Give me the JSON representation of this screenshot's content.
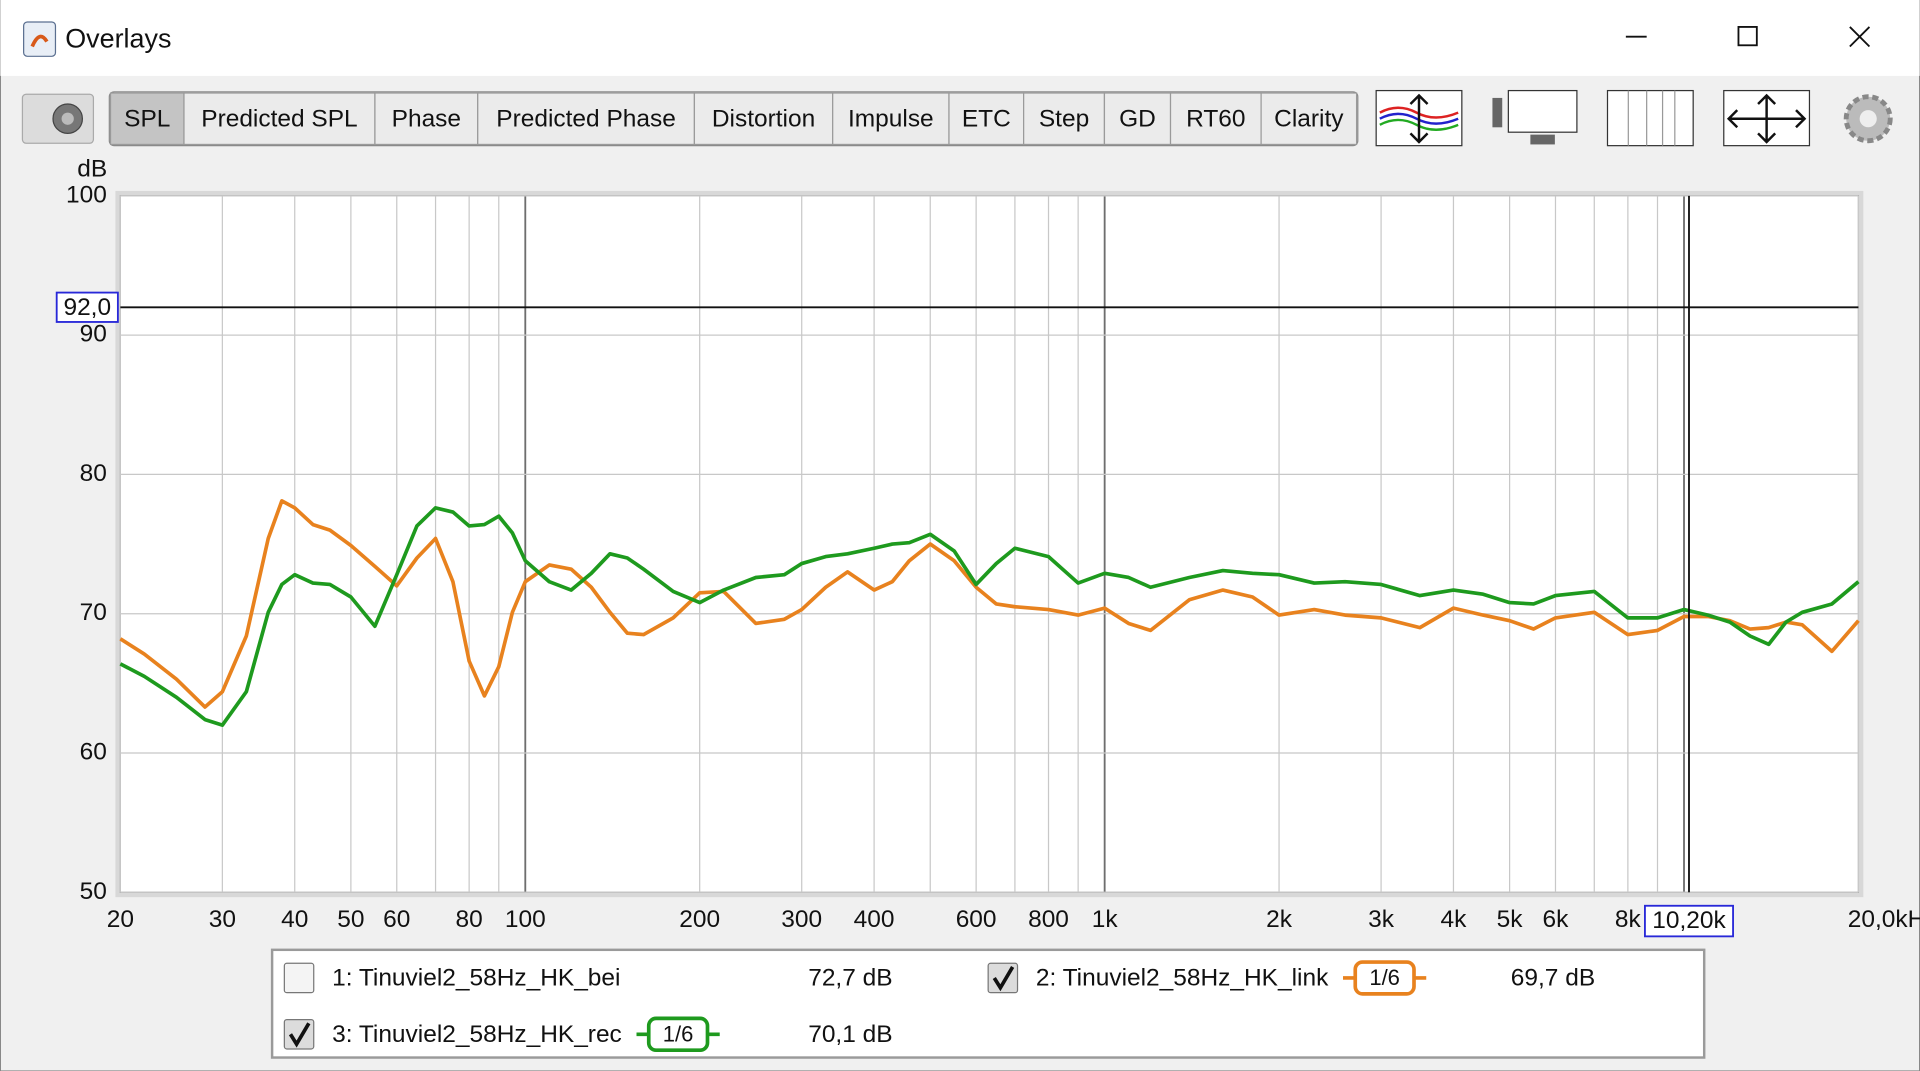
{
  "window": {
    "title": "Overlays"
  },
  "toolbar": {
    "tabs": [
      "SPL",
      "Predicted SPL",
      "Phase",
      "Predicted Phase",
      "Distortion",
      "Impulse",
      "ETC",
      "Step",
      "GD",
      "RT60",
      "Clarity"
    ],
    "selected": 0
  },
  "chart_data": {
    "type": "line",
    "ylabel": "dB",
    "xscale": "log",
    "xlim": [
      20,
      20000
    ],
    "ylim": [
      50,
      100
    ],
    "grid": true,
    "yticks": [
      50,
      60,
      70,
      80,
      90,
      100
    ],
    "xticks": [
      20,
      30,
      40,
      50,
      60,
      80,
      100,
      200,
      300,
      400,
      600,
      800,
      {
        "value": 1000,
        "label": "1k"
      },
      {
        "value": 2000,
        "label": "2k"
      },
      {
        "value": 3000,
        "label": "3k"
      },
      {
        "value": 4000,
        "label": "4k"
      },
      {
        "value": 5000,
        "label": "5k"
      },
      {
        "value": 6000,
        "label": "6k"
      },
      {
        "value": 8000,
        "label": "8k"
      },
      {
        "value": 20000,
        "label": "20,0kHz"
      }
    ],
    "xgrid": [
      20,
      30,
      40,
      50,
      60,
      70,
      80,
      90,
      100,
      200,
      300,
      400,
      500,
      600,
      700,
      800,
      900,
      1000,
      2000,
      3000,
      4000,
      5000,
      6000,
      7000,
      8000,
      9000,
      10000,
      20000
    ],
    "xmajor": [
      100,
      1000,
      10000
    ],
    "cursor": {
      "x": 10200,
      "x_label": "10,20k",
      "y": 92,
      "y_label": "92,0"
    },
    "x": [
      20,
      22,
      25,
      28,
      30,
      33,
      36,
      38,
      40,
      43,
      46,
      50,
      55,
      60,
      65,
      70,
      75,
      80,
      85,
      90,
      95,
      100,
      110,
      120,
      130,
      140,
      150,
      160,
      180,
      200,
      220,
      250,
      280,
      300,
      330,
      360,
      400,
      430,
      460,
      500,
      550,
      600,
      650,
      700,
      800,
      900,
      1000,
      1100,
      1200,
      1400,
      1600,
      1800,
      2000,
      2300,
      2600,
      3000,
      3500,
      4000,
      4500,
      5000,
      5500,
      6000,
      7000,
      8000,
      9000,
      10000,
      11000,
      12000,
      13000,
      14000,
      15000,
      16000,
      18000,
      20000
    ],
    "series": [
      {
        "name": "1: Tinuviel2_58Hz_HK_bei",
        "color": "#d42a2a",
        "checked": false,
        "readout": "72,7 dB"
      },
      {
        "name": "2: Tinuviel2_58Hz_HK_link",
        "color": "#e8821e",
        "checked": true,
        "smoothing": "1/6",
        "readout": "69,7 dB",
        "values": [
          68.2,
          67.1,
          65.3,
          63.3,
          64.4,
          68.4,
          75.4,
          78.1,
          77.6,
          76.4,
          76,
          74.9,
          73.4,
          72,
          74,
          75.4,
          72.3,
          66.6,
          64.1,
          66.2,
          70.1,
          72.3,
          73.5,
          73.2,
          71.9,
          70.1,
          68.6,
          68.5,
          69.7,
          71.5,
          71.6,
          69.3,
          69.6,
          70.3,
          71.9,
          73,
          71.7,
          72.3,
          73.8,
          75,
          73.8,
          71.9,
          70.7,
          70.5,
          70.3,
          69.9,
          70.4,
          69.3,
          68.8,
          71,
          71.7,
          71.2,
          69.9,
          70.3,
          69.9,
          69.7,
          69,
          70.4,
          69.9,
          69.5,
          68.9,
          69.7,
          70.1,
          68.5,
          68.8,
          69.8,
          69.8,
          69.5,
          68.9,
          69,
          69.4,
          69.2,
          67.3,
          69.5
        ]
      },
      {
        "name": "3: Tinuviel2_58Hz_HK_rec",
        "color": "#1e9a1e",
        "checked": true,
        "smoothing": "1/6",
        "readout": "70,1 dB",
        "values": [
          66.4,
          65.5,
          64,
          62.4,
          62,
          64.4,
          70.1,
          72.1,
          72.8,
          72.2,
          72.1,
          71.2,
          69.1,
          72.8,
          76.3,
          77.6,
          77.3,
          76.3,
          76.4,
          77,
          75.8,
          73.8,
          72.3,
          71.7,
          72.9,
          74.3,
          74,
          73.2,
          71.6,
          70.8,
          71.7,
          72.6,
          72.8,
          73.6,
          74.1,
          74.3,
          74.7,
          75,
          75.1,
          75.7,
          74.5,
          72.1,
          73.6,
          74.7,
          74.1,
          72.2,
          72.9,
          72.6,
          71.9,
          72.6,
          73.1,
          72.9,
          72.8,
          72.2,
          72.3,
          72.1,
          71.3,
          71.7,
          71.4,
          70.8,
          70.7,
          71.3,
          71.6,
          69.7,
          69.7,
          70.3,
          69.9,
          69.4,
          68.4,
          67.8,
          69.4,
          70.1,
          70.7,
          72.3
        ]
      }
    ]
  }
}
